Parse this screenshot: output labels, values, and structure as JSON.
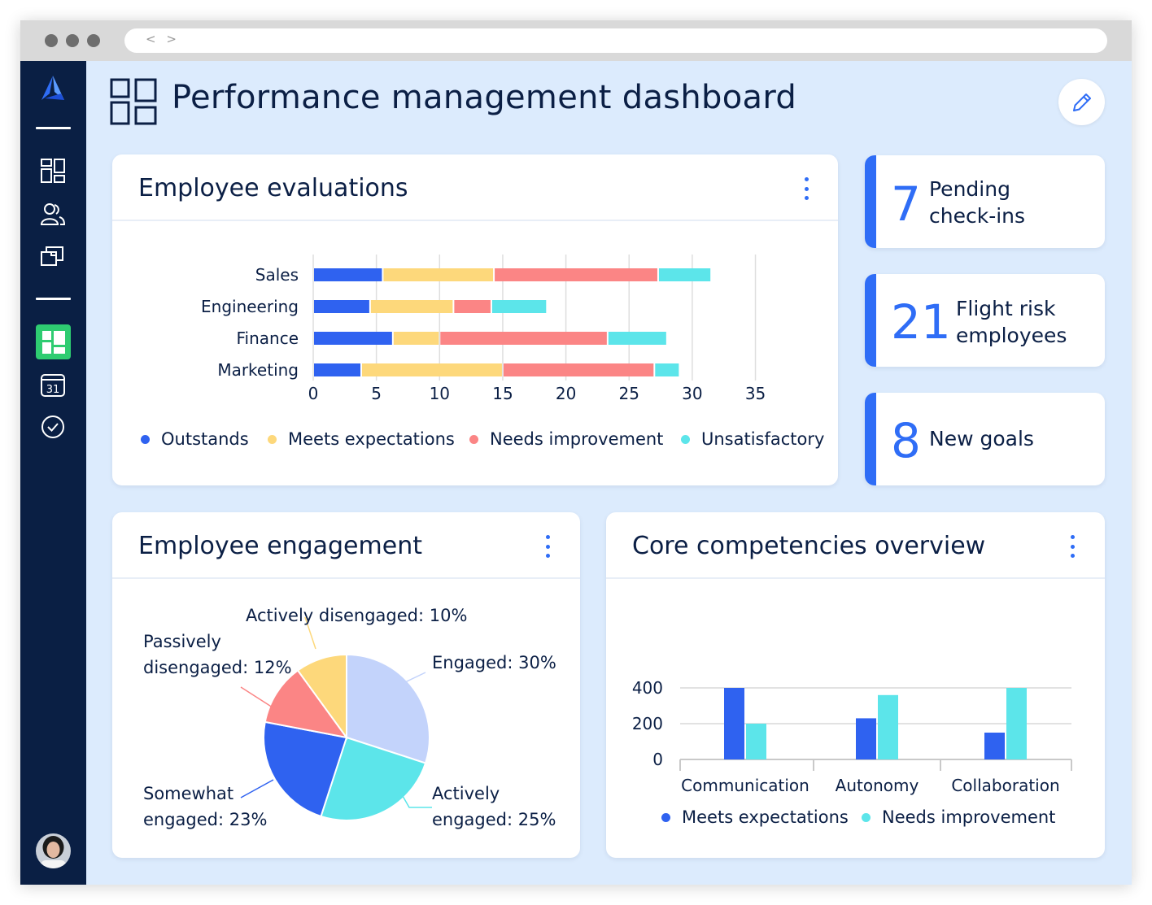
{
  "browser": {
    "nav_glyph": "< >"
  },
  "header": {
    "title": "Performance management dashboard"
  },
  "sidebar": {
    "items": [
      {
        "icon": "dashboard-icon"
      },
      {
        "icon": "people-icon"
      },
      {
        "icon": "folders-icon"
      },
      {
        "icon": "layout-icon",
        "active": true
      },
      {
        "icon": "calendar-icon",
        "label": "31"
      },
      {
        "icon": "check-circle-icon"
      }
    ]
  },
  "evaluations": {
    "title": "Employee evaluations",
    "chart_data": {
      "type": "bar",
      "orientation": "horizontal",
      "stacked": true,
      "categories": [
        "Sales",
        "Engineering",
        "Finance",
        "Marketing"
      ],
      "series": [
        {
          "name": "Outstands",
          "color": "#2f62f0",
          "values": [
            5.5,
            4.5,
            6.3,
            3.8
          ]
        },
        {
          "name": "Meets expectations",
          "color": "#fdd87b",
          "values": [
            8.8,
            6.6,
            3.7,
            11.2
          ]
        },
        {
          "name": "Needs improvement",
          "color": "#fb8585",
          "values": [
            13,
            3,
            13.3,
            12
          ]
        },
        {
          "name": "Unsatisfactory",
          "color": "#5ce5ea",
          "values": [
            4.2,
            4.4,
            4.7,
            2
          ]
        }
      ],
      "xlim": [
        0,
        35
      ],
      "xticks": [
        "0",
        "5",
        "10",
        "15",
        "20",
        "25",
        "30",
        "35"
      ],
      "grid": true,
      "legend_position": "bottom"
    }
  },
  "stats": [
    {
      "value": "7",
      "label": "Pending check-ins"
    },
    {
      "value": "21",
      "label": "Flight risk employees"
    },
    {
      "value": "8",
      "label": "New goals"
    }
  ],
  "engagement": {
    "title": "Employee engagement",
    "chart_data": {
      "type": "pie",
      "slices": [
        {
          "label": "Engaged: 30%",
          "value": 30,
          "color": "#c3d3fb"
        },
        {
          "label": "Actively engaged: 25%",
          "value": 25,
          "color": "#5ce5ea"
        },
        {
          "label": "Somewhat engaged: 23%",
          "value": 23,
          "color": "#2f62f0"
        },
        {
          "label": "Passively disengaged: 12%",
          "value": 12,
          "color": "#fb8585"
        },
        {
          "label": "Actively disengaged: 10%",
          "value": 10,
          "color": "#fdd87b"
        }
      ],
      "labels": {
        "engaged": "Engaged: 30%",
        "actively_engaged_1": "Actively",
        "actively_engaged_2": "engaged: 25%",
        "somewhat_1": "Somewhat",
        "somewhat_2": "engaged: 23%",
        "passively_1": "Passively",
        "passively_2": "disengaged: 12%",
        "actively_dis": "Actively disengaged: 10%"
      }
    }
  },
  "competencies": {
    "title": "Core competencies overview",
    "chart_data": {
      "type": "bar",
      "categories": [
        "Communication",
        "Autonomy",
        "Collaboration"
      ],
      "series": [
        {
          "name": "Meets expectations",
          "color": "#2f62f0",
          "values": [
            400,
            230,
            150
          ]
        },
        {
          "name": "Needs improvement",
          "color": "#5ce5ea",
          "values": [
            200,
            360,
            400
          ]
        }
      ],
      "ylim": [
        0,
        400
      ],
      "yticks": [
        "0",
        "200",
        "400"
      ],
      "grid": true,
      "legend_position": "bottom"
    }
  }
}
